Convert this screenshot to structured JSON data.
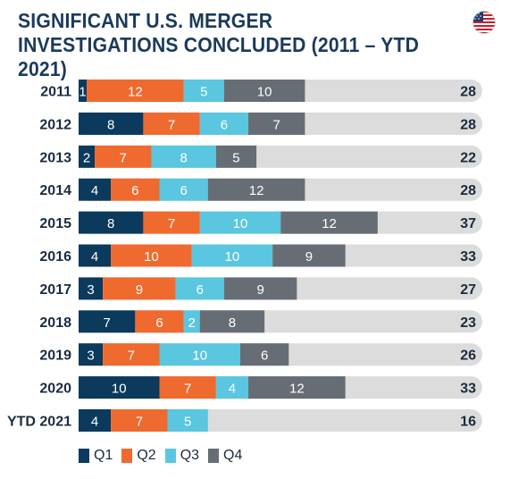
{
  "title": "SIGNIFICANT U.S. MERGER INVESTIGATIONS CONCLUDED (2011 – YTD 2021)",
  "colors": {
    "Q1": "#0b3a5c",
    "Q2": "#ef6a2e",
    "Q3": "#5ac6df",
    "Q4": "#676d75",
    "track": "#dcdcdc",
    "label": "#1b2b3f"
  },
  "flag_icon": "us-flag-icon",
  "chart_data": {
    "type": "bar",
    "orientation": "horizontal-stacked",
    "categories": [
      "2011",
      "2012",
      "2013",
      "2014",
      "2015",
      "2016",
      "2017",
      "2018",
      "2019",
      "2020",
      "YTD 2021"
    ],
    "series": [
      {
        "name": "Q1",
        "values": [
          1,
          8,
          2,
          4,
          8,
          4,
          3,
          7,
          3,
          10,
          4
        ]
      },
      {
        "name": "Q2",
        "values": [
          12,
          7,
          7,
          6,
          7,
          10,
          9,
          6,
          7,
          7,
          7
        ]
      },
      {
        "name": "Q3",
        "values": [
          5,
          6,
          8,
          6,
          10,
          10,
          6,
          2,
          10,
          4,
          5
        ]
      },
      {
        "name": "Q4",
        "values": [
          10,
          7,
          5,
          12,
          12,
          9,
          9,
          8,
          6,
          12,
          0
        ]
      }
    ],
    "totals": [
      28,
      28,
      22,
      28,
      37,
      33,
      27,
      23,
      26,
      33,
      16
    ],
    "xlim": [
      0,
      40
    ],
    "grid": false,
    "legend": "bottom-left"
  }
}
